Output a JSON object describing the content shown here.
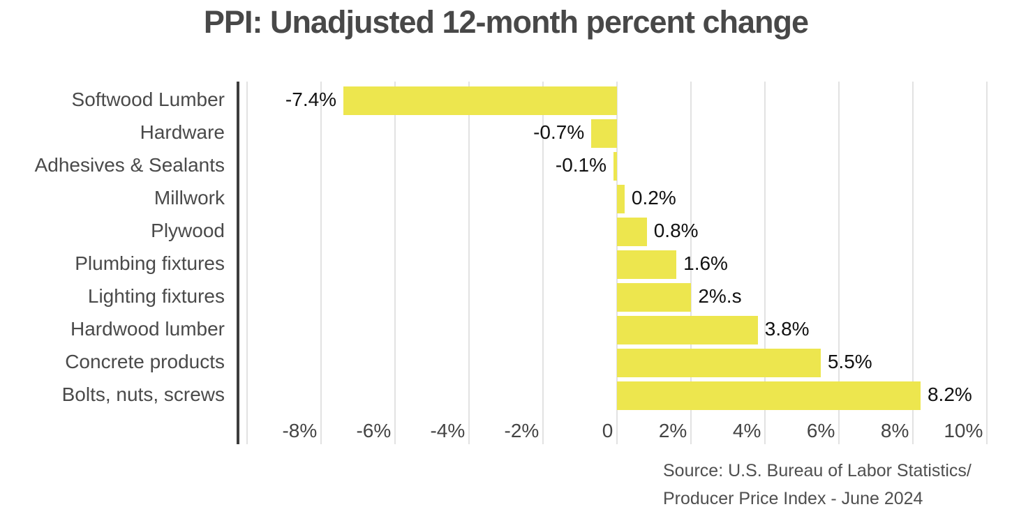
{
  "page": {
    "background_color": "#ffffff"
  },
  "chart_data": {
    "type": "bar",
    "orientation": "horizontal",
    "title": "PPI: Unadjusted 12-month percent change",
    "categories": [
      "Softwood Lumber",
      "Hardware",
      "Adhesives & Sealants",
      "Millwork",
      "Plywood",
      "Plumbing fixtures",
      "Lighting fixtures",
      "Hardwood lumber",
      "Concrete products",
      "Bolts, nuts, screws"
    ],
    "values": [
      -7.4,
      -0.7,
      -0.1,
      0.2,
      0.8,
      1.6,
      2.0,
      3.8,
      5.5,
      8.2
    ],
    "value_labels": [
      "-7.4%",
      "-0.7%",
      "-0.1%",
      "0.2%",
      "0.8%",
      "1.6%",
      "2%.s",
      "3.8%",
      "5.5%",
      "8.2%"
    ],
    "xlim": [
      -10.25,
      10.2
    ],
    "xticks": {
      "values": [
        -8,
        -6,
        -4,
        -2,
        0,
        2,
        4,
        6,
        8,
        10
      ],
      "labels": [
        "-8%",
        "-6%",
        "-4%",
        "-2%",
        "0",
        "2%",
        "4%",
        "6%",
        "8%",
        "10%"
      ]
    },
    "gridline_values": [
      -10,
      -8,
      -6,
      -4,
      -2,
      0,
      2,
      4,
      6,
      8,
      10
    ],
    "grid": true,
    "legend": false,
    "xlabel": "",
    "ylabel": ""
  },
  "source": {
    "line1": "Source: U.S. Bureau of Labor Statistics/",
    "line2": "Producer Price Index - June 2024"
  },
  "colors": {
    "bar": "#EDE64E",
    "axis_line": "#3d3d3d",
    "gridline": "#e2e2e2",
    "title_text": "#484848",
    "category_text": "#4a4a4a",
    "value_text": "#111111",
    "tick_text": "#444444",
    "source_text": "#4f4f4f"
  }
}
